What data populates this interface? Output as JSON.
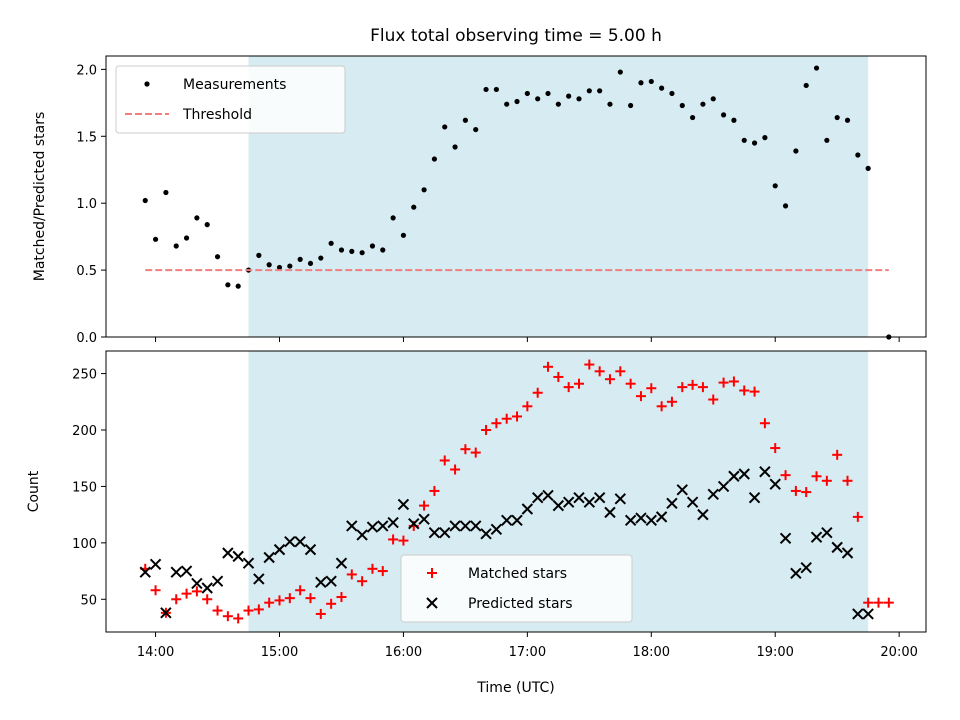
{
  "chart_data": [
    {
      "type": "scatter",
      "title": "Flux total observing time = 5.00 h",
      "xlabel": "",
      "ylabel": "Matched/Predicted stars",
      "xlim": [
        "13:36",
        "20:13"
      ],
      "ylim": [
        0,
        2.1
      ],
      "yticks": [
        "0.0",
        "0.5",
        "1.0",
        "1.5",
        "2.0"
      ],
      "shaded_interval": [
        "14:45",
        "19:45"
      ],
      "shade_color": "#add8e6",
      "legend_position": "upper left",
      "series": [
        {
          "name": "Measurements",
          "marker": "dot",
          "color": "#000000",
          "x": [
            "13:55",
            "14:00",
            "14:05",
            "14:10",
            "14:15",
            "14:20",
            "14:25",
            "14:30",
            "14:35",
            "14:40",
            "14:45",
            "14:50",
            "14:55",
            "15:00",
            "15:05",
            "15:10",
            "15:15",
            "15:20",
            "15:25",
            "15:30",
            "15:35",
            "15:40",
            "15:45",
            "15:50",
            "15:55",
            "16:00",
            "16:05",
            "16:10",
            "16:15",
            "16:20",
            "16:25",
            "16:30",
            "16:35",
            "16:40",
            "16:45",
            "16:50",
            "16:55",
            "17:00",
            "17:05",
            "17:10",
            "17:15",
            "17:20",
            "17:25",
            "17:30",
            "17:35",
            "17:40",
            "17:45",
            "17:50",
            "17:55",
            "18:00",
            "18:05",
            "18:10",
            "18:15",
            "18:20",
            "18:25",
            "18:30",
            "18:35",
            "18:40",
            "18:45",
            "18:50",
            "18:55",
            "19:00",
            "19:05",
            "19:10",
            "19:15",
            "19:20",
            "19:25",
            "19:30",
            "19:35",
            "19:40",
            "19:45",
            "19:55"
          ],
          "y": [
            1.02,
            0.73,
            1.08,
            0.68,
            0.74,
            0.89,
            0.84,
            0.6,
            0.39,
            0.38,
            0.5,
            0.61,
            0.54,
            0.52,
            0.53,
            0.58,
            0.55,
            0.59,
            0.7,
            0.65,
            0.64,
            0.63,
            0.68,
            0.65,
            0.89,
            0.76,
            0.97,
            1.1,
            1.33,
            1.57,
            1.42,
            1.62,
            1.55,
            1.85,
            1.85,
            1.74,
            1.76,
            1.82,
            1.78,
            1.82,
            1.74,
            1.8,
            1.78,
            1.84,
            1.84,
            1.74,
            1.98,
            1.73,
            1.9,
            1.91,
            1.86,
            1.82,
            1.73,
            1.64,
            1.74,
            1.78,
            1.66,
            1.62,
            1.47,
            1.45,
            1.49,
            1.13,
            0.98,
            1.39,
            1.88,
            2.01,
            1.47,
            1.64,
            1.62,
            1.36,
            1.26,
            0.0
          ]
        },
        {
          "name": "Threshold",
          "style": "dashed",
          "color": "#f08080",
          "x": [
            "13:55",
            "19:55"
          ],
          "y": [
            0.5,
            0.5
          ]
        }
      ]
    },
    {
      "type": "scatter",
      "title": "",
      "xlabel": "Time (UTC)",
      "ylabel": "Count",
      "xlim": [
        "13:36",
        "20:13"
      ],
      "ylim": [
        21,
        270
      ],
      "yticks": [
        "50",
        "100",
        "150",
        "200",
        "250"
      ],
      "xticks": [
        "14:00",
        "15:00",
        "16:00",
        "17:00",
        "18:00",
        "19:00",
        "20:00"
      ],
      "shaded_interval": [
        "14:45",
        "19:45"
      ],
      "shade_color": "#add8e6",
      "legend_position": "lower center",
      "series": [
        {
          "name": "Matched stars",
          "marker": "plus",
          "color": "#ff0000",
          "x": [
            "13:55",
            "14:00",
            "14:05",
            "14:10",
            "14:15",
            "14:20",
            "14:25",
            "14:30",
            "14:35",
            "14:40",
            "14:45",
            "14:50",
            "14:55",
            "15:00",
            "15:05",
            "15:10",
            "15:15",
            "15:20",
            "15:25",
            "15:30",
            "15:35",
            "15:40",
            "15:45",
            "15:50",
            "15:55",
            "16:00",
            "16:05",
            "16:10",
            "16:15",
            "16:20",
            "16:25",
            "16:30",
            "16:35",
            "16:40",
            "16:45",
            "16:50",
            "16:55",
            "17:00",
            "17:05",
            "17:10",
            "17:15",
            "17:20",
            "17:25",
            "17:30",
            "17:35",
            "17:40",
            "17:45",
            "17:50",
            "17:55",
            "18:00",
            "18:05",
            "18:10",
            "18:15",
            "18:20",
            "18:25",
            "18:30",
            "18:35",
            "18:40",
            "18:45",
            "18:50",
            "18:55",
            "19:00",
            "19:05",
            "19:10",
            "19:15",
            "19:20",
            "19:25",
            "19:30",
            "19:35",
            "19:40",
            "19:45",
            "19:50",
            "19:55"
          ],
          "y": [
            77,
            58,
            38,
            50,
            55,
            57,
            50,
            40,
            35,
            33,
            40,
            41,
            47,
            49,
            51,
            58,
            51,
            37,
            46,
            52,
            72,
            66,
            77,
            75,
            103,
            102,
            115,
            133,
            146,
            173,
            165,
            183,
            180,
            200,
            206,
            210,
            212,
            221,
            233,
            256,
            247,
            238,
            241,
            258,
            252,
            245,
            252,
            241,
            230,
            237,
            221,
            225,
            238,
            240,
            238,
            227,
            242,
            243,
            235,
            234,
            206,
            184,
            160,
            146,
            145,
            159,
            155,
            178,
            155,
            123,
            47,
            47,
            47
          ]
        },
        {
          "name": "Predicted stars",
          "marker": "x",
          "color": "#000000",
          "x": [
            "13:55",
            "14:00",
            "14:05",
            "14:10",
            "14:15",
            "14:20",
            "14:25",
            "14:30",
            "14:35",
            "14:40",
            "14:45",
            "14:50",
            "14:55",
            "15:00",
            "15:05",
            "15:10",
            "15:15",
            "15:20",
            "15:25",
            "15:30",
            "15:35",
            "15:40",
            "15:45",
            "15:50",
            "15:55",
            "16:00",
            "16:05",
            "16:10",
            "16:15",
            "16:20",
            "16:25",
            "16:30",
            "16:35",
            "16:40",
            "16:45",
            "16:50",
            "16:55",
            "17:00",
            "17:05",
            "17:10",
            "17:15",
            "17:20",
            "17:25",
            "17:30",
            "17:35",
            "17:40",
            "17:45",
            "17:50",
            "17:55",
            "18:00",
            "18:05",
            "18:10",
            "18:15",
            "18:20",
            "18:25",
            "18:30",
            "18:35",
            "18:40",
            "18:45",
            "18:50",
            "18:55",
            "19:00",
            "19:05",
            "19:10",
            "19:15",
            "19:20",
            "19:25",
            "19:30",
            "19:35",
            "19:40",
            "19:45"
          ],
          "y": [
            74,
            81,
            38,
            74,
            75,
            64,
            60,
            66,
            91,
            88,
            82,
            68,
            87,
            94,
            101,
            101,
            94,
            65,
            66,
            82,
            115,
            107,
            114,
            115,
            118,
            134,
            117,
            121,
            109,
            109,
            115,
            115,
            115,
            108,
            112,
            120,
            120,
            130,
            140,
            142,
            133,
            136,
            140,
            136,
            140,
            127,
            139,
            120,
            122,
            120,
            123,
            135,
            147,
            136,
            125,
            143,
            150,
            159,
            161,
            140,
            163,
            152,
            104,
            73,
            78,
            105,
            109,
            96,
            91,
            37,
            37
          ]
        }
      ]
    }
  ]
}
